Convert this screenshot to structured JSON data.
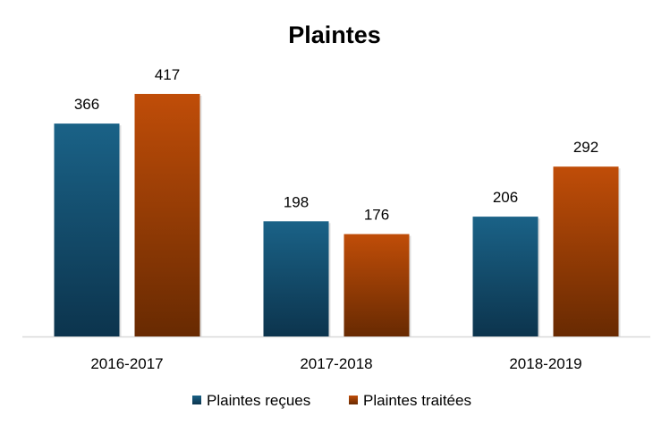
{
  "chart_data": {
    "type": "bar",
    "title": "Plaintes",
    "categories": [
      "2016-2017",
      "2017-2018",
      "2018-2019"
    ],
    "series": [
      {
        "name": "Plaintes reçues",
        "values": [
          366,
          198,
          206
        ],
        "color": "#1a6287",
        "color_dark": "#0c344d"
      },
      {
        "name": "Plaintes traitées",
        "values": [
          417,
          176,
          292
        ],
        "color": "#c04d08",
        "color_dark": "#682a02"
      }
    ],
    "ylim": [
      0,
      500
    ],
    "grid": false,
    "data_labels": true,
    "legend_position": "bottom"
  }
}
